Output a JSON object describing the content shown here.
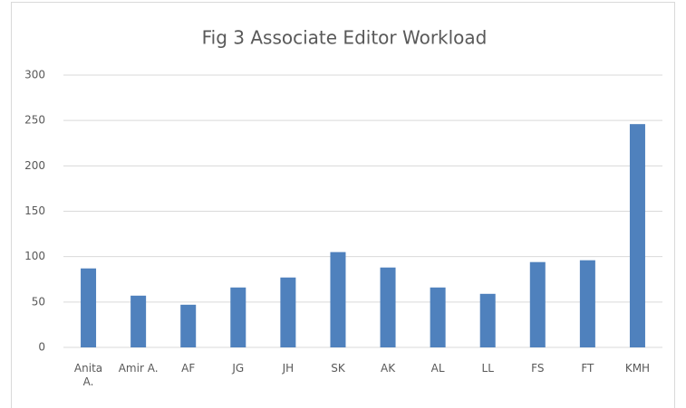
{
  "chart_data": {
    "type": "bar",
    "title": "Fig 3 Associate Editor Workload",
    "categories": [
      "Anita A.",
      "Amir A.",
      "AF",
      "JG",
      "JH",
      "SK",
      "AK",
      "AL",
      "LL",
      "FS",
      "FT",
      "KMH"
    ],
    "values": [
      87,
      57,
      47,
      66,
      77,
      105,
      88,
      66,
      59,
      94,
      96,
      246
    ],
    "color": "#4f81bd",
    "ylim": [
      0,
      300
    ],
    "yticks": [
      0,
      50,
      100,
      150,
      200,
      250,
      300
    ],
    "grid": true
  }
}
